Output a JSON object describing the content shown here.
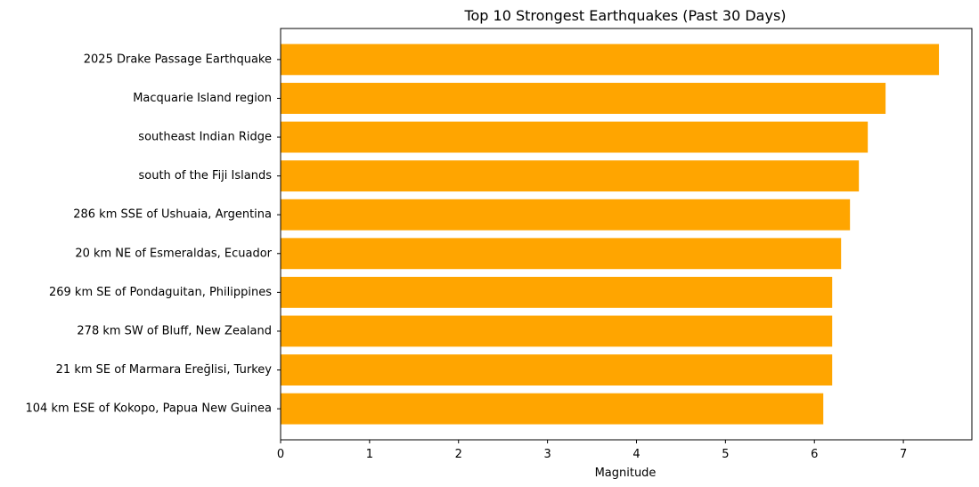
{
  "chart_data": {
    "type": "bar",
    "orientation": "horizontal",
    "title": "Top 10 Strongest Earthquakes (Past 30 Days)",
    "xlabel": "Magnitude",
    "ylabel": "",
    "xlim": [
      0,
      7.77
    ],
    "xticks": [
      0,
      1,
      2,
      3,
      4,
      5,
      6,
      7
    ],
    "grid": false,
    "bar_color": "#FFA500",
    "categories": [
      "2025 Drake Passage Earthquake",
      "Macquarie Island region",
      "southeast Indian Ridge",
      "south of the Fiji Islands",
      "286 km SSE of Ushuaia, Argentina",
      "20 km NE of Esmeraldas, Ecuador",
      "269 km SE of Pondaguitan, Philippines",
      "278 km SW of Bluff, New Zealand",
      "21 km SE of Marmara Ereğlisi, Turkey",
      "104 km ESE of Kokopo, Papua New Guinea"
    ],
    "values": [
      7.4,
      6.8,
      6.6,
      6.5,
      6.4,
      6.3,
      6.2,
      6.2,
      6.2,
      6.1
    ]
  }
}
